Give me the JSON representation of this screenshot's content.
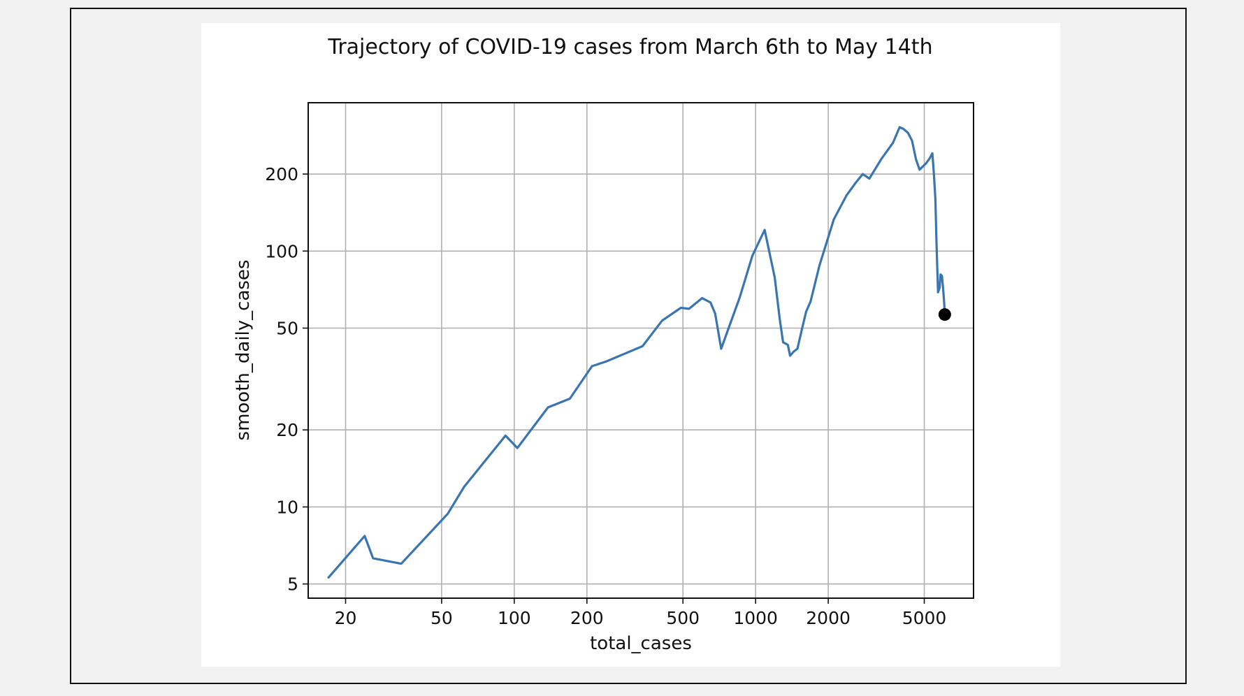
{
  "chart_data": {
    "type": "line",
    "title": "Trajectory of COVID-19 cases from March 6th to May 14th",
    "xlabel": "total_cases",
    "ylabel": "smooth_daily_cases",
    "xscale": "log",
    "yscale": "log",
    "xlim": [
      14,
      8000
    ],
    "ylim": [
      4.4,
      380
    ],
    "grid": true,
    "xticks": [
      20,
      50,
      100,
      200,
      500,
      1000,
      2000,
      5000
    ],
    "xtick_labels": [
      "20",
      "50",
      "100",
      "200",
      "500",
      "1000",
      "2000",
      "5000"
    ],
    "yticks": [
      5,
      10,
      20,
      50,
      100,
      200
    ],
    "ytick_labels": [
      "5",
      "10",
      "20",
      "50",
      "100",
      "200"
    ],
    "line_color": "#3a75b0",
    "marker_color": "#000000",
    "series": [
      {
        "x": [
          17,
          24,
          26,
          34,
          53,
          62,
          92,
          103,
          138,
          170,
          210,
          240,
          340,
          410,
          490,
          530,
          600,
          650,
          680,
          720,
          860,
          970,
          1090,
          1200,
          1260,
          1300,
          1360,
          1390,
          1440,
          1490,
          1560,
          1620,
          1690,
          1840,
          2110,
          2380,
          2600,
          2780,
          2960,
          3320,
          3710,
          3950,
          4100,
          4280,
          4450,
          4620,
          4780,
          5080,
          5260,
          5400,
          5480,
          5560,
          5620,
          5700,
          5790,
          5840,
          5920,
          6000,
          6050,
          6080
        ],
        "y": [
          5.3,
          7.7,
          6.3,
          6.0,
          9.4,
          12.0,
          19.0,
          17.0,
          24.5,
          26.5,
          35.5,
          37.0,
          42.5,
          53.5,
          60.0,
          59.5,
          65.5,
          63.0,
          57.0,
          41.5,
          66.0,
          96.0,
          121.0,
          79.0,
          54.0,
          44.0,
          43.0,
          39.0,
          40.5,
          41.5,
          50.0,
          58.0,
          63.5,
          88.0,
          133.0,
          165.0,
          185.0,
          200.0,
          192.0,
          229.0,
          265.0,
          305.0,
          300.0,
          290.0,
          270.0,
          228.0,
          208.0,
          220.0,
          230.0,
          241.0,
          200.0,
          160.0,
          108.0,
          69.0,
          72.0,
          81.0,
          80.0,
          69.0,
          62.0,
          56.5
        ]
      }
    ],
    "end_marker": {
      "x": 6080,
      "y": 56.5
    }
  }
}
